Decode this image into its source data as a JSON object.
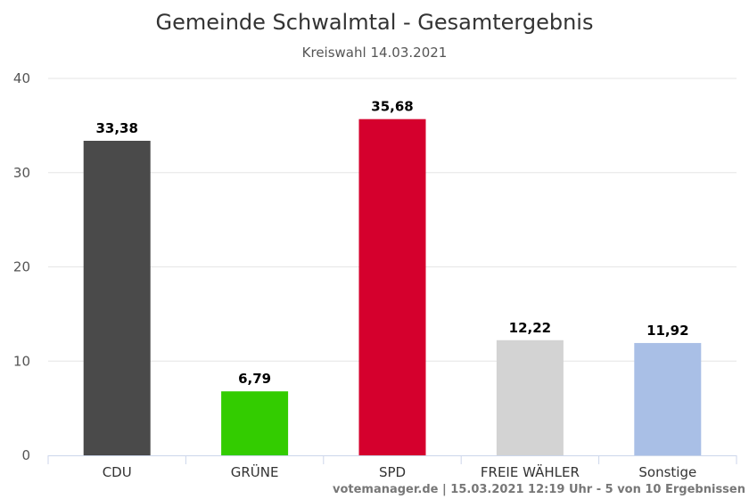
{
  "chart_data": {
    "type": "bar",
    "title": "Gemeinde Schwalmtal - Gesamtergebnis",
    "subtitle": "Kreiswahl 14.03.2021",
    "categories": [
      "CDU",
      "GRÜNE",
      "SPD",
      "FREIE WÄHLER",
      "Sonstige"
    ],
    "values": [
      33.38,
      6.79,
      35.68,
      12.22,
      11.92
    ],
    "value_labels": [
      "33,38",
      "6,79",
      "35,68",
      "12,22",
      "11,92"
    ],
    "colors": [
      "#4a4a4a",
      "#33cc00",
      "#d5002d",
      "#d3d3d3",
      "#a9bfe6"
    ],
    "ylim": [
      0,
      40
    ],
    "yticks": [
      0,
      10,
      20,
      30,
      40
    ],
    "xlabel": "",
    "ylabel": "",
    "grid": true,
    "legend": "none",
    "credit": "votemanager.de | 15.03.2021 12:19 Uhr - 5 von 10 Ergebnissen"
  }
}
